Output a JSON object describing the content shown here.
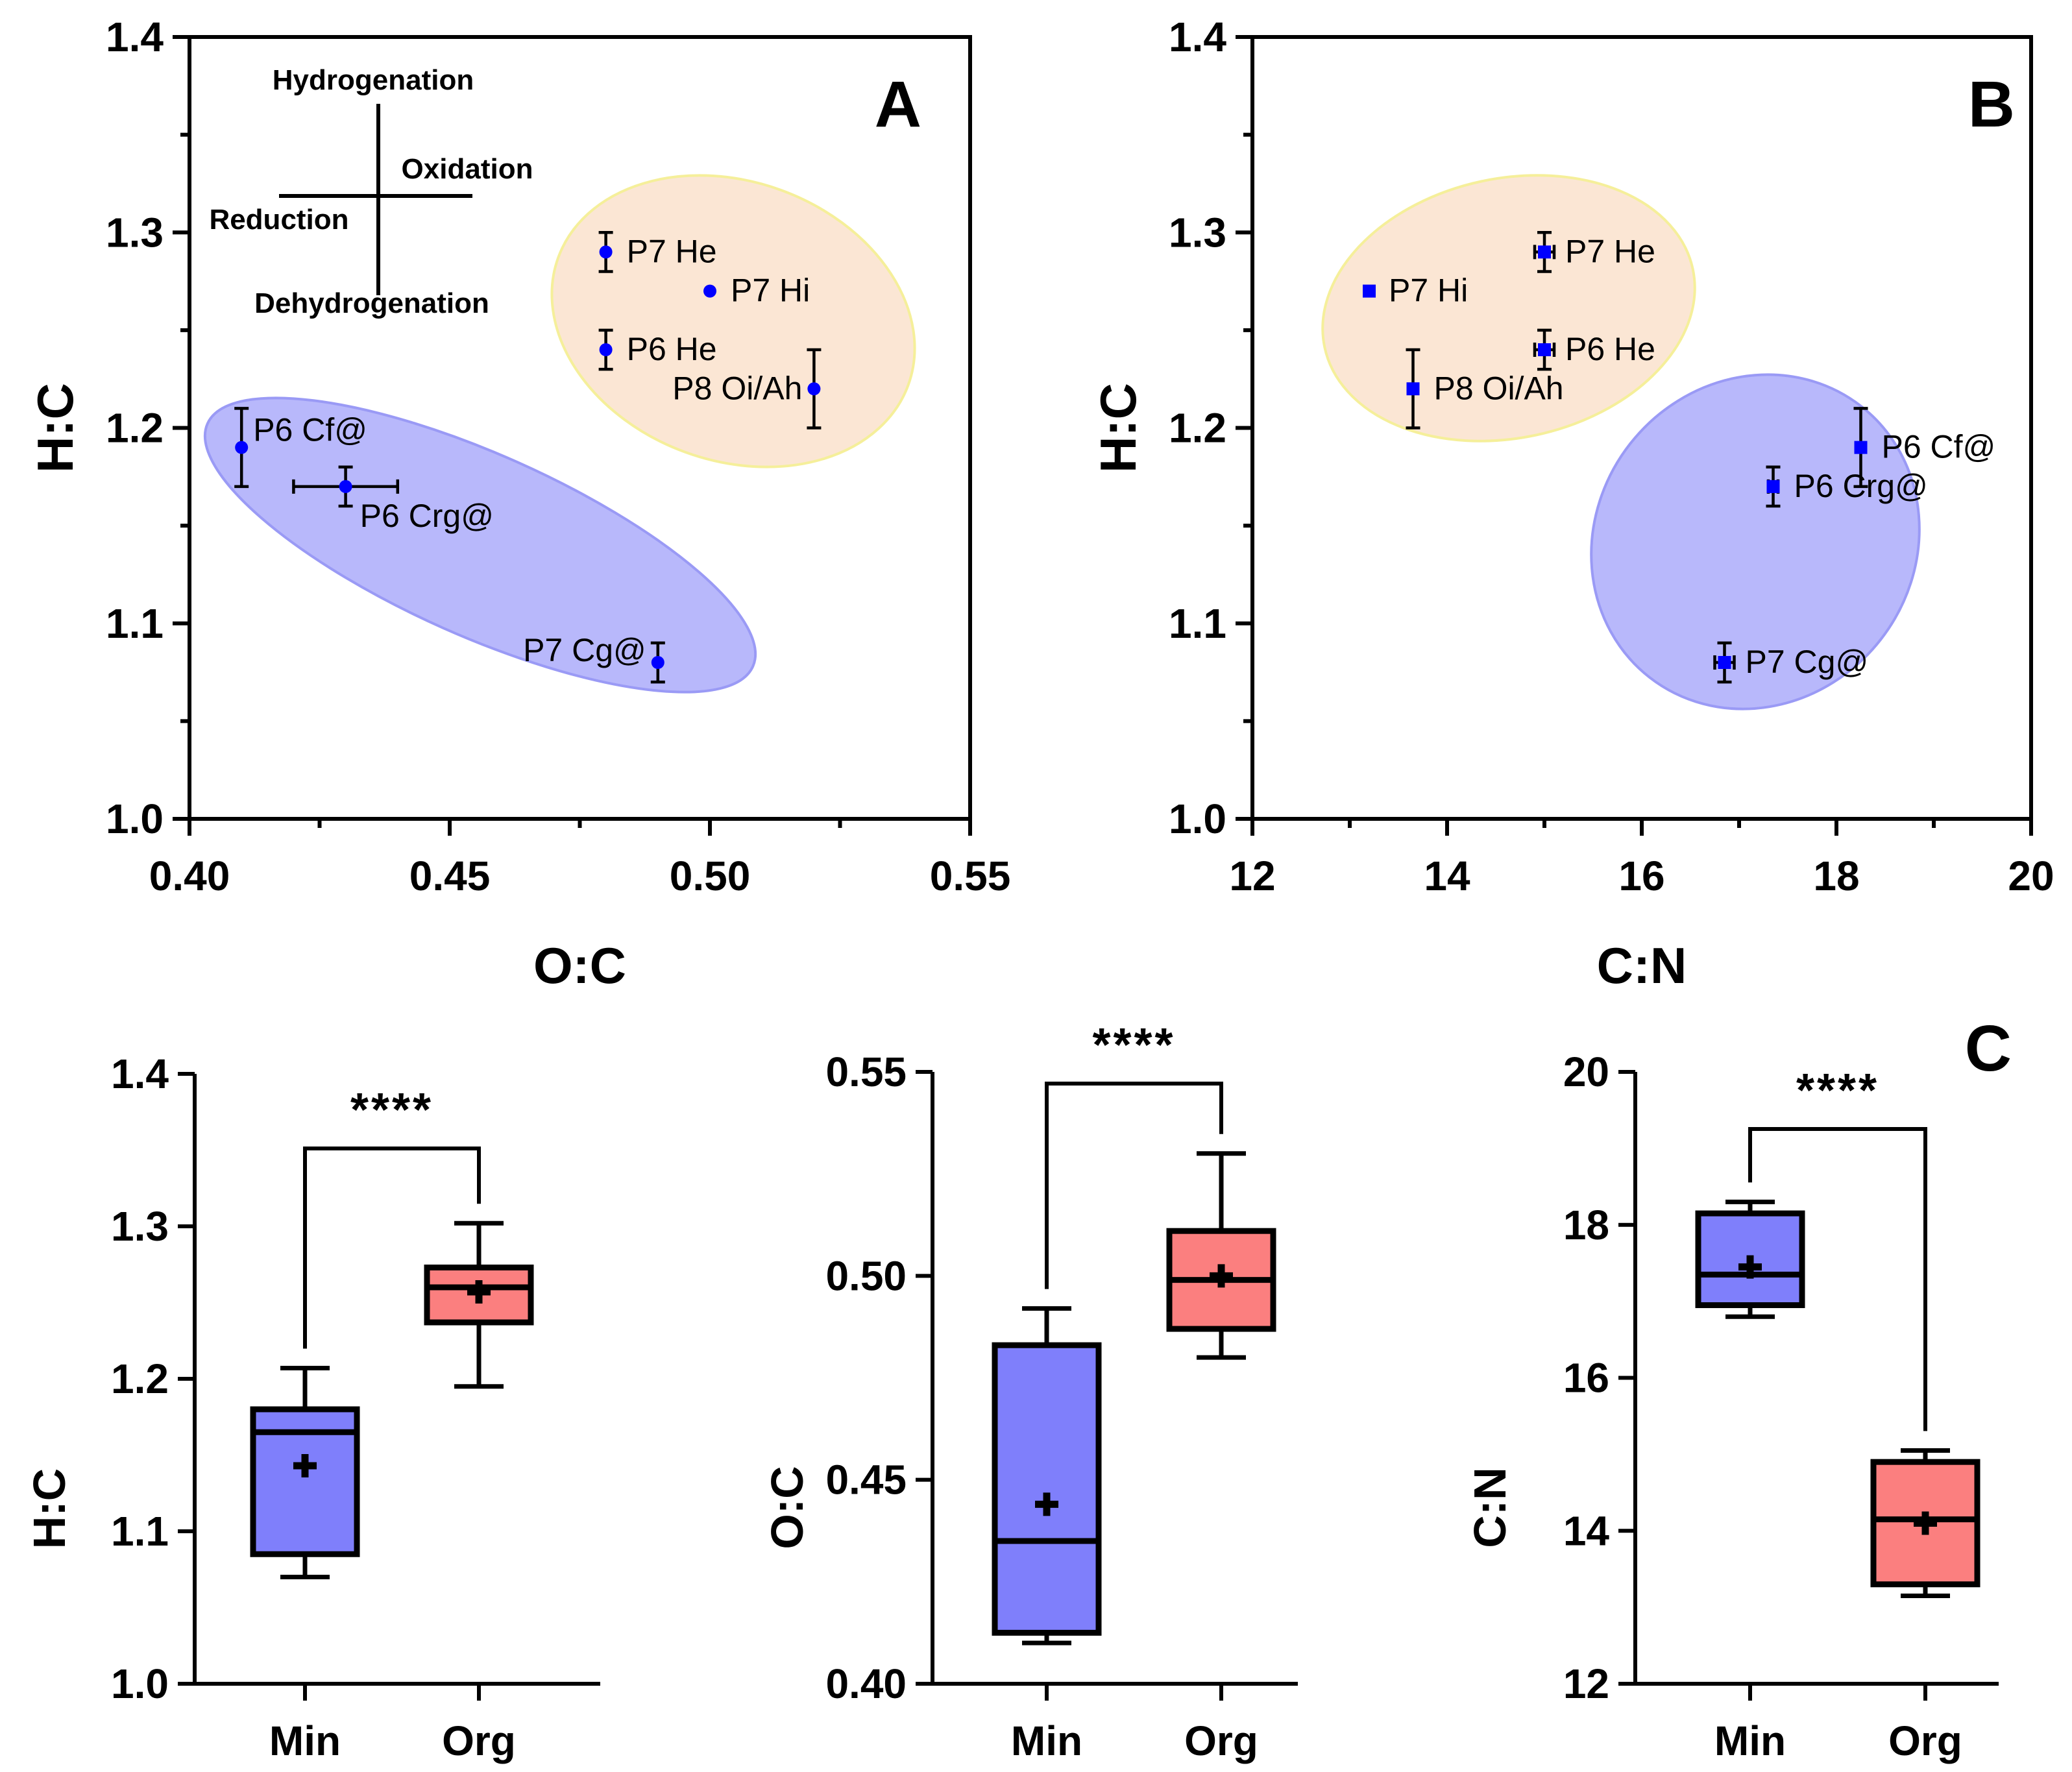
{
  "chart_data": [
    {
      "panel": "A",
      "type": "scatter",
      "xlabel": "O:C",
      "ylabel": "H:C",
      "xlim": [
        0.4,
        0.55
      ],
      "ylim": [
        1.0,
        1.4
      ],
      "xticks": [
        "0.40",
        "0.45",
        "0.50",
        "0.55"
      ],
      "yticks": [
        "1.0",
        "1.1",
        "1.2",
        "1.3",
        "1.4"
      ],
      "marker": "circle",
      "color": "#0000ff",
      "points": [
        {
          "label": "P7 He",
          "x": 0.48,
          "y": 1.29,
          "xerr": 0,
          "yerr": 0.01,
          "group": "org"
        },
        {
          "label": "P7 Hi",
          "x": 0.5,
          "y": 1.27,
          "xerr": 0,
          "yerr": 0,
          "group": "org"
        },
        {
          "label": "P6 He",
          "x": 0.48,
          "y": 1.24,
          "xerr": 0,
          "yerr": 0.01,
          "group": "org"
        },
        {
          "label": "P8 Oi/Ah",
          "x": 0.52,
          "y": 1.22,
          "xerr": 0,
          "yerr": 0.02,
          "group": "org"
        },
        {
          "label": "P6 Cf@",
          "x": 0.41,
          "y": 1.19,
          "xerr": 0,
          "yerr": 0.02,
          "group": "min"
        },
        {
          "label": "P6 Crg@",
          "x": 0.43,
          "y": 1.17,
          "xerr": 0.01,
          "yerr": 0.01,
          "group": "min"
        },
        {
          "label": "P7 Cg@",
          "x": 0.49,
          "y": 1.08,
          "xerr": 0,
          "yerr": 0.01,
          "group": "min"
        }
      ],
      "annotations": {
        "up": "Hydrogenation",
        "down": "Dehydrogenation",
        "right": "Oxidation",
        "left": "Reduction"
      },
      "group_colors": {
        "org": "#fbe6d4",
        "min": "#b8b8fb"
      }
    },
    {
      "panel": "B",
      "type": "scatter",
      "xlabel": "C:N",
      "ylabel": "H:C",
      "xlim": [
        12,
        20
      ],
      "ylim": [
        1.0,
        1.4
      ],
      "xticks": [
        "12",
        "14",
        "16",
        "18",
        "20"
      ],
      "yticks": [
        "1.0",
        "1.1",
        "1.2",
        "1.3",
        "1.4"
      ],
      "marker": "square",
      "color": "#0000ff",
      "points": [
        {
          "label": "P7 He",
          "x": 15.0,
          "y": 1.29,
          "xerr": 0.1,
          "yerr": 0.01,
          "group": "org"
        },
        {
          "label": "P7 Hi",
          "x": 13.2,
          "y": 1.27,
          "xerr": 0,
          "yerr": 0,
          "group": "org"
        },
        {
          "label": "P6 He",
          "x": 15.0,
          "y": 1.24,
          "xerr": 0.1,
          "yerr": 0.01,
          "group": "org"
        },
        {
          "label": "P8 Oi/Ah",
          "x": 13.65,
          "y": 1.22,
          "xerr": 0,
          "yerr": 0.02,
          "group": "org"
        },
        {
          "label": "P6 Cf@",
          "x": 18.25,
          "y": 1.19,
          "xerr": 0,
          "yerr": 0.02,
          "group": "min"
        },
        {
          "label": "P6 Crg@",
          "x": 17.35,
          "y": 1.17,
          "xerr": 0.05,
          "yerr": 0.01,
          "group": "min"
        },
        {
          "label": "P7 Cg@",
          "x": 16.85,
          "y": 1.08,
          "xerr": 0.1,
          "yerr": 0.01,
          "group": "min"
        }
      ],
      "group_colors": {
        "org": "#fbe6d4",
        "min": "#b8b8fb"
      }
    },
    {
      "panel": "C",
      "type": "box",
      "ylabel": "H:C",
      "ylim": [
        1.0,
        1.4
      ],
      "yticks": [
        "1.0",
        "1.1",
        "1.2",
        "1.3",
        "1.4"
      ],
      "categories": [
        "Min",
        "Org"
      ],
      "boxes": [
        {
          "min": 1.07,
          "q1": 1.085,
          "median": 1.165,
          "q3": 1.18,
          "max": 1.207,
          "mean": 1.143,
          "color": "#7f7ffb"
        },
        {
          "min": 1.195,
          "q1": 1.237,
          "median": 1.26,
          "q3": 1.273,
          "max": 1.302,
          "mean": 1.257,
          "color": "#fb7f7f"
        }
      ],
      "significance": "****"
    },
    {
      "panel": "C",
      "type": "box",
      "ylabel": "O:C",
      "ylim": [
        0.4,
        0.55
      ],
      "yticks": [
        "0.40",
        "0.45",
        "0.50",
        "0.55"
      ],
      "categories": [
        "Min",
        "Org"
      ],
      "boxes": [
        {
          "min": 0.41,
          "q1": 0.4125,
          "median": 0.435,
          "q3": 0.483,
          "max": 0.492,
          "mean": 0.444,
          "color": "#7f7ffb"
        },
        {
          "min": 0.48,
          "q1": 0.487,
          "median": 0.499,
          "q3": 0.511,
          "max": 0.53,
          "mean": 0.5,
          "color": "#fb7f7f"
        }
      ],
      "significance": "****"
    },
    {
      "panel": "C",
      "type": "box",
      "ylabel": "C:N",
      "ylim": [
        12,
        20
      ],
      "yticks": [
        "12",
        "14",
        "16",
        "18",
        "20"
      ],
      "categories": [
        "Min",
        "Org"
      ],
      "boxes": [
        {
          "min": 16.8,
          "q1": 16.95,
          "median": 17.35,
          "q3": 18.15,
          "max": 18.3,
          "mean": 17.45,
          "color": "#7f7ffb"
        },
        {
          "min": 13.15,
          "q1": 13.3,
          "median": 14.15,
          "q3": 14.9,
          "max": 15.05,
          "mean": 14.1,
          "color": "#fb7f7f"
        }
      ],
      "significance": "****"
    }
  ],
  "panel_labels": {
    "a": "A",
    "b": "B",
    "c": "C"
  }
}
